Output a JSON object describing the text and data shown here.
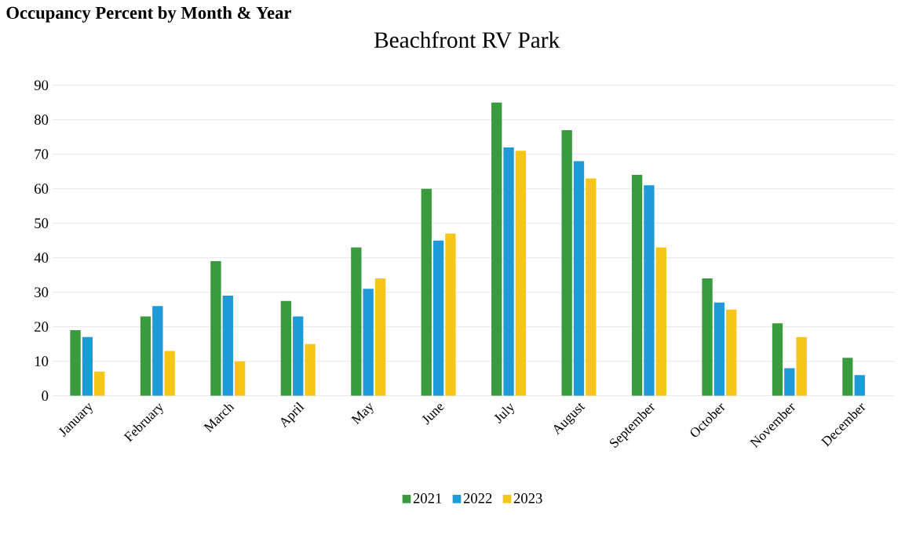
{
  "chart_data": {
    "type": "bar",
    "title": "Occupancy Percent by Month & Year",
    "subtitle": "Beachfront RV Park",
    "categories": [
      "January",
      "February",
      "March",
      "April",
      "May",
      "June",
      "July",
      "August",
      "September",
      "October",
      "November",
      "December"
    ],
    "series": [
      {
        "name": "2021",
        "color": "#3a9a3e",
        "values": [
          19,
          23,
          39,
          27.5,
          43,
          60,
          85,
          77,
          64,
          34,
          21,
          11
        ]
      },
      {
        "name": "2022",
        "color": "#1e9ad6",
        "values": [
          17,
          26,
          29,
          23,
          31,
          45,
          72,
          68,
          61,
          27,
          8,
          6
        ]
      },
      {
        "name": "2023",
        "color": "#f5c518",
        "values": [
          7,
          13,
          10,
          15,
          34,
          47,
          71,
          63,
          43,
          25,
          17,
          null
        ]
      }
    ],
    "ylim": [
      0,
      90
    ],
    "yticks": [
      0,
      10,
      20,
      30,
      40,
      50,
      60,
      70,
      80,
      90
    ],
    "grid": "y",
    "legend": "bottom"
  }
}
